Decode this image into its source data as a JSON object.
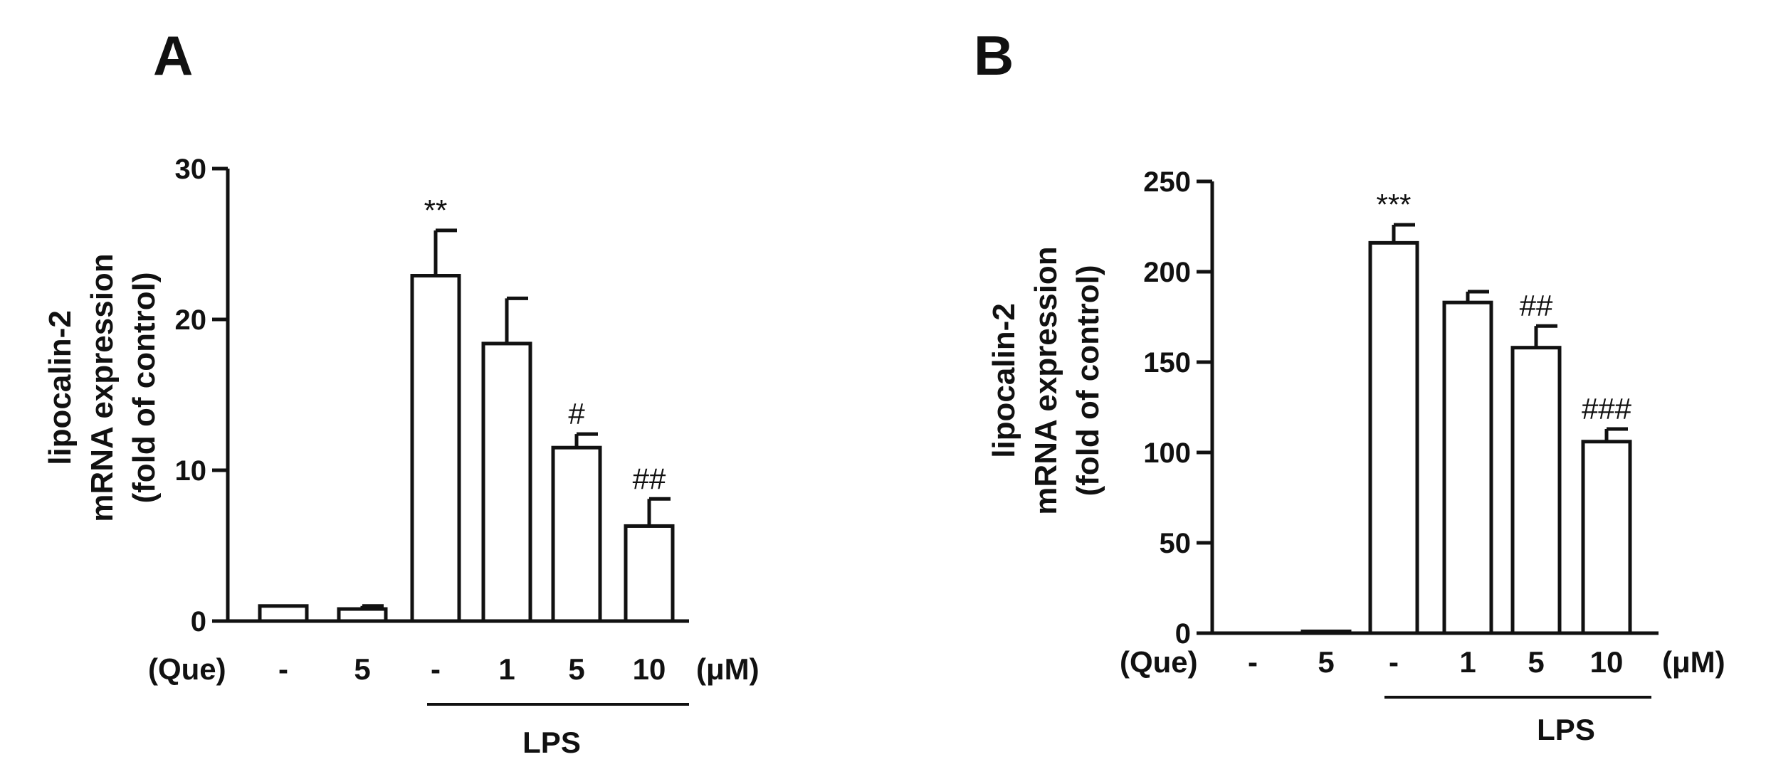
{
  "chart_data": [
    {
      "type": "bar",
      "panel": "A",
      "ylabel_lines": [
        "lipocalin-2",
        "mRNA expression",
        "(fold of control)"
      ],
      "ylim": [
        0,
        30
      ],
      "yticks": [
        0,
        10,
        20,
        30
      ],
      "treatment_label": "(Que)",
      "unit_label": "(μM)",
      "categories": [
        "-",
        "5",
        "-",
        "1",
        "5",
        "10"
      ],
      "values": [
        1.0,
        0.8,
        22.9,
        18.4,
        11.5,
        6.3
      ],
      "errors": [
        0.0,
        0.2,
        3.0,
        3.0,
        0.9,
        1.8
      ],
      "significance": [
        "",
        "",
        "**",
        "",
        "#",
        "##"
      ],
      "group_label": "LPS",
      "group_span": [
        2,
        5
      ]
    },
    {
      "type": "bar",
      "panel": "B",
      "ylabel_lines": [
        "lipocalin-2",
        "mRNA expression",
        "(fold of control)"
      ],
      "ylim": [
        0,
        250
      ],
      "yticks": [
        0,
        50,
        100,
        150,
        200,
        250
      ],
      "treatment_label": "(Que)",
      "unit_label": "(μM)",
      "categories": [
        "-",
        "5",
        "-",
        "1",
        "5",
        "10"
      ],
      "values": [
        0,
        1,
        216,
        183,
        158,
        106
      ],
      "errors": [
        0,
        0,
        10,
        6,
        12,
        7
      ],
      "significance": [
        "",
        "",
        "***",
        "",
        "##",
        "###"
      ],
      "group_label": "LPS",
      "group_span": [
        2,
        5
      ]
    }
  ]
}
